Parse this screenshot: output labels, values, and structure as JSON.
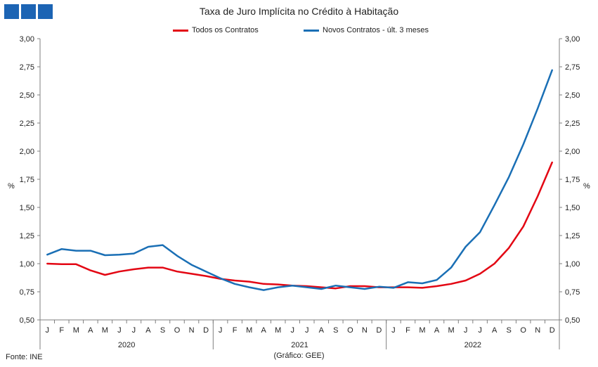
{
  "colors": {
    "logo": "#1c64b4",
    "axis": "#7f7f7f",
    "text": "#222222"
  },
  "chart_data": {
    "type": "line",
    "title": "Taxa de Juro Implícita  no Crédito à Habitação",
    "ylabel_left": "%",
    "ylabel_right": "%",
    "ylim": [
      0.5,
      3.0
    ],
    "yticks": [
      "0,50",
      "0,75",
      "1,00",
      "1,25",
      "1,50",
      "1,75",
      "2,00",
      "2,25",
      "2,50",
      "2,75",
      "3,00"
    ],
    "ytick_values": [
      0.5,
      0.75,
      1.0,
      1.25,
      1.5,
      1.75,
      2.0,
      2.25,
      2.5,
      2.75,
      3.0
    ],
    "grid": false,
    "legend_position": "top",
    "months": [
      "J",
      "F",
      "M",
      "A",
      "M",
      "J",
      "J",
      "A",
      "S",
      "O",
      "N",
      "D",
      "J",
      "F",
      "M",
      "A",
      "M",
      "J",
      "J",
      "A",
      "S",
      "O",
      "N",
      "D",
      "J",
      "F",
      "M",
      "A",
      "M",
      "J",
      "J",
      "A",
      "S",
      "O",
      "N",
      "D"
    ],
    "years": [
      "2020",
      "2021",
      "2022"
    ],
    "series": [
      {
        "name": "Todos os Contratos",
        "color": "#e30613",
        "values": [
          1.0,
          0.995,
          0.995,
          0.94,
          0.9,
          0.93,
          0.95,
          0.965,
          0.965,
          0.93,
          0.91,
          0.89,
          0.865,
          0.85,
          0.84,
          0.82,
          0.815,
          0.805,
          0.8,
          0.79,
          0.78,
          0.8,
          0.8,
          0.79,
          0.79,
          0.79,
          0.785,
          0.8,
          0.82,
          0.85,
          0.91,
          1.0,
          1.14,
          1.33,
          1.6,
          1.9
        ]
      },
      {
        "name": "Novos Contratos - últ. 3 meses",
        "color": "#1a6fb5",
        "values": [
          1.08,
          1.13,
          1.115,
          1.115,
          1.075,
          1.08,
          1.09,
          1.15,
          1.165,
          1.07,
          0.99,
          0.93,
          0.87,
          0.82,
          0.79,
          0.765,
          0.79,
          0.805,
          0.79,
          0.775,
          0.805,
          0.79,
          0.775,
          0.795,
          0.785,
          0.835,
          0.825,
          0.855,
          0.965,
          1.15,
          1.28,
          1.52,
          1.77,
          2.06,
          2.38,
          2.72
        ]
      }
    ]
  },
  "footer": {
    "source": "Fonte: INE",
    "credit": "(Gráfico: GEE)"
  }
}
